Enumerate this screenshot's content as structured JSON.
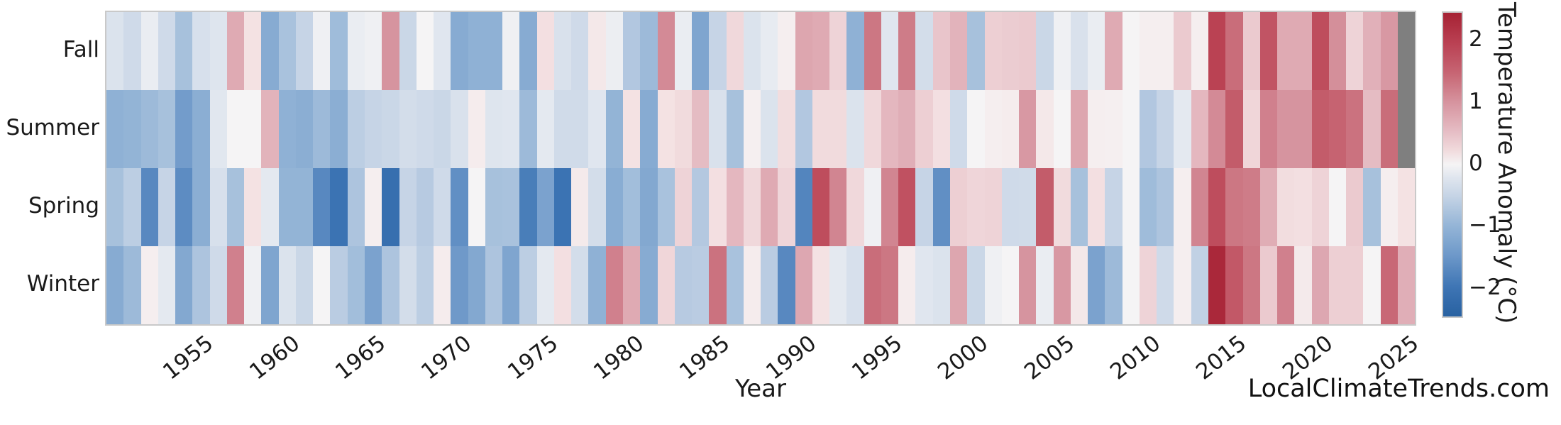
{
  "watermark": "LocalClimateTrends.com",
  "chart_data": {
    "type": "heatmap",
    "title": "",
    "xlabel": "Year",
    "ylabel": "",
    "x_start": 1950,
    "x_end": 2025,
    "x_ticks": [
      1955,
      1960,
      1965,
      1970,
      1975,
      1980,
      1985,
      1990,
      1995,
      2000,
      2005,
      2010,
      2015,
      2020,
      2025
    ],
    "rows": [
      "Fall",
      "Summer",
      "Spring",
      "Winter"
    ],
    "legend_position": "right",
    "grid": false,
    "missing_color": "#7f7f7f",
    "colormap": {
      "vmin": -2.45,
      "vmax": 2.45,
      "stops": [
        [
          -2.5,
          "#27609f"
        ],
        [
          -2.0,
          "#3b73b3"
        ],
        [
          -1.5,
          "#6b96c8"
        ],
        [
          -1.0,
          "#93b4d6"
        ],
        [
          -0.5,
          "#c6d4e6"
        ],
        [
          -0.15,
          "#e4e9f0"
        ],
        [
          0,
          "#f5f4f5"
        ],
        [
          0.15,
          "#f4e2e3"
        ],
        [
          0.5,
          "#e7c0c7"
        ],
        [
          1.0,
          "#d6949f"
        ],
        [
          1.5,
          "#c66371"
        ],
        [
          2.0,
          "#b93e50"
        ],
        [
          2.5,
          "#a41f31"
        ]
      ]
    },
    "colorbar": {
      "label": "Temperature Anomaly (°C)",
      "tick_values": [
        2,
        1,
        0,
        -1,
        -2
      ],
      "tick_labels": [
        "2",
        "1",
        "0",
        "−1",
        "−2"
      ]
    },
    "series": [
      {
        "name": "Fall",
        "values": [
          -0.25,
          -0.4,
          -0.1,
          -0.4,
          -0.8,
          -0.3,
          -0.22,
          0.75,
          0.15,
          -1.15,
          -0.78,
          -0.5,
          -0.05,
          -0.88,
          -0.1,
          -0.05,
          1.0,
          -0.45,
          0.0,
          -0.2,
          -1.15,
          -1.05,
          -1.05,
          -0.05,
          -1.15,
          0.18,
          -0.28,
          -0.4,
          0.1,
          -0.08,
          -0.7,
          -0.9,
          1.1,
          -0.1,
          -1.25,
          -0.5,
          0.25,
          -0.25,
          -0.12,
          0.05,
          0.8,
          0.75,
          0.3,
          -1.05,
          1.3,
          -0.2,
          1.25,
          -0.35,
          0.45,
          0.65,
          -0.8,
          0.35,
          0.38,
          0.4,
          -0.45,
          -0.05,
          -0.28,
          -0.1,
          0.75,
          0.0,
          0.05,
          0.05,
          0.4,
          0.05,
          1.95,
          1.4,
          0.4,
          1.7,
          0.75,
          0.75,
          1.8,
          1.05,
          0.3,
          0.68,
          0.95,
          null
        ]
      },
      {
        "name": "Summer",
        "values": [
          -1.05,
          -1.0,
          -0.9,
          -0.8,
          -1.4,
          -1.1,
          -0.18,
          0.0,
          0.0,
          0.65,
          -1.05,
          -1.1,
          -0.9,
          -1.1,
          -0.6,
          -0.5,
          -0.45,
          -0.35,
          -0.4,
          -0.45,
          -0.28,
          0.07,
          -0.22,
          -0.2,
          -0.9,
          -0.15,
          -0.38,
          -0.38,
          -0.2,
          -1.0,
          0.15,
          -1.15,
          0.15,
          0.22,
          0.55,
          -0.28,
          -0.8,
          0.04,
          -0.25,
          0.2,
          -0.7,
          0.22,
          0.22,
          -0.25,
          0.25,
          0.6,
          0.7,
          0.35,
          0.18,
          -0.4,
          0.0,
          0.05,
          0.07,
          0.95,
          0.1,
          0.0,
          0.8,
          0.05,
          0.04,
          0.0,
          -0.7,
          -0.5,
          -0.15,
          0.6,
          1.1,
          1.6,
          0.27,
          1.2,
          1.0,
          1.0,
          1.6,
          1.5,
          1.35,
          0.55,
          1.4,
          null
        ]
      },
      {
        "name": "Spring",
        "values": [
          -0.8,
          -0.6,
          -1.7,
          -0.5,
          -1.65,
          -1.1,
          -0.3,
          -0.8,
          0.15,
          -0.15,
          -1.0,
          -1.0,
          -1.7,
          -2.0,
          -0.75,
          0.05,
          -2.1,
          -0.5,
          -0.65,
          -0.4,
          -1.6,
          0.0,
          -0.8,
          -0.78,
          -1.85,
          -1.3,
          -2.0,
          0.08,
          -0.35,
          -1.12,
          -0.85,
          -1.2,
          -0.78,
          0.3,
          -0.68,
          0.18,
          0.6,
          0.25,
          0.75,
          0.28,
          -1.75,
          1.8,
          1.15,
          0.25,
          -0.05,
          1.15,
          1.75,
          -0.5,
          -1.6,
          0.35,
          0.28,
          0.3,
          -0.4,
          -0.38,
          1.6,
          0.22,
          -0.8,
          0.18,
          -0.5,
          0.0,
          -0.88,
          -0.75,
          0.05,
          1.15,
          1.8,
          1.3,
          1.25,
          0.72,
          0.2,
          0.18,
          0.3,
          0.0,
          0.4,
          -0.8,
          0.05,
          0.15
        ]
      },
      {
        "name": "Winter",
        "values": [
          -1.15,
          -0.9,
          0.05,
          -0.15,
          -1.2,
          -0.75,
          -0.4,
          1.2,
          -0.05,
          -1.25,
          -0.25,
          -0.45,
          0.0,
          -0.62,
          -0.85,
          -1.3,
          -0.75,
          -0.35,
          -0.6,
          0.07,
          -1.45,
          -1.2,
          -0.75,
          -1.25,
          -0.6,
          -0.15,
          0.18,
          -0.35,
          -1.05,
          1.2,
          0.75,
          -1.15,
          0.27,
          -0.65,
          -0.62,
          1.35,
          -0.78,
          0.07,
          -0.62,
          -1.7,
          0.78,
          0.15,
          -0.15,
          -0.3,
          1.4,
          1.3,
          0.07,
          -0.2,
          -0.25,
          0.8,
          -0.45,
          -0.05,
          0.0,
          1.0,
          -0.1,
          0.95,
          0.1,
          -1.3,
          -0.9,
          0.0,
          0.3,
          -0.4,
          0.05,
          -0.55,
          2.35,
          1.65,
          1.3,
          0.4,
          1.2,
          0.08,
          0.78,
          0.35,
          0.35,
          0.0,
          1.45,
          0.7
        ]
      }
    ]
  }
}
